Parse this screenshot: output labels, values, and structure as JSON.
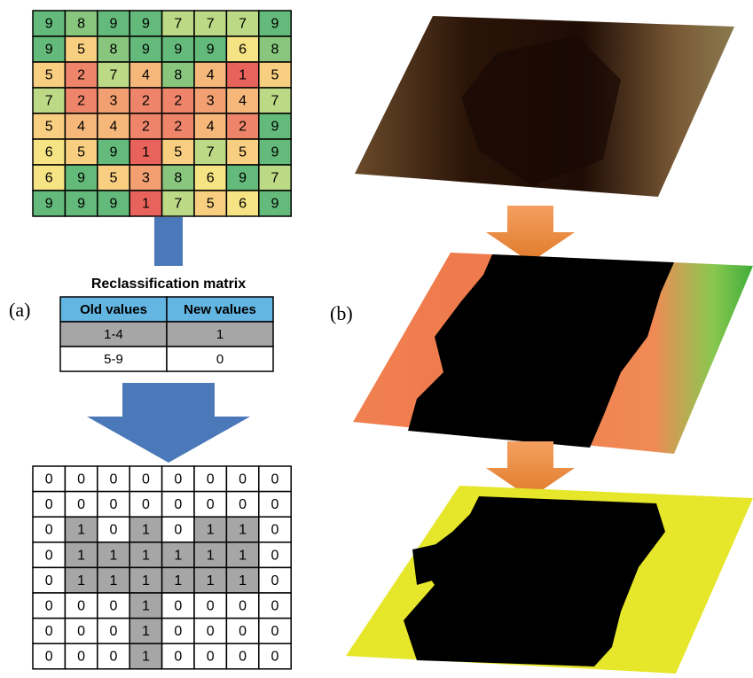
{
  "labels": {
    "a": "(a)",
    "b": "(b)"
  },
  "input_grid": {
    "rows": [
      [
        9,
        8,
        9,
        9,
        7,
        7,
        7,
        9
      ],
      [
        9,
        5,
        8,
        9,
        9,
        9,
        6,
        8
      ],
      [
        5,
        2,
        7,
        4,
        8,
        4,
        1,
        5
      ],
      [
        7,
        2,
        3,
        2,
        2,
        3,
        4,
        7
      ],
      [
        5,
        4,
        4,
        2,
        2,
        4,
        2,
        9
      ],
      [
        6,
        5,
        9,
        1,
        5,
        7,
        5,
        9
      ],
      [
        6,
        9,
        5,
        3,
        8,
        6,
        9,
        7
      ],
      [
        9,
        9,
        9,
        1,
        7,
        5,
        6,
        9
      ]
    ]
  },
  "reclassification": {
    "title": "Reclassification matrix",
    "header": [
      "Old values",
      "New values"
    ],
    "rows": [
      [
        "1-4",
        1
      ],
      [
        "5-9",
        0
      ]
    ]
  },
  "output_grid": {
    "rows": [
      [
        0,
        0,
        0,
        0,
        0,
        0,
        0,
        0
      ],
      [
        0,
        0,
        0,
        0,
        0,
        0,
        0,
        0
      ],
      [
        0,
        1,
        0,
        1,
        0,
        1,
        1,
        0
      ],
      [
        0,
        1,
        1,
        1,
        1,
        1,
        1,
        0
      ],
      [
        0,
        1,
        1,
        1,
        1,
        1,
        1,
        0
      ],
      [
        0,
        0,
        0,
        1,
        0,
        0,
        0,
        0
      ],
      [
        0,
        0,
        0,
        1,
        0,
        0,
        0,
        0
      ],
      [
        0,
        0,
        0,
        1,
        0,
        0,
        0,
        0
      ]
    ]
  }
}
